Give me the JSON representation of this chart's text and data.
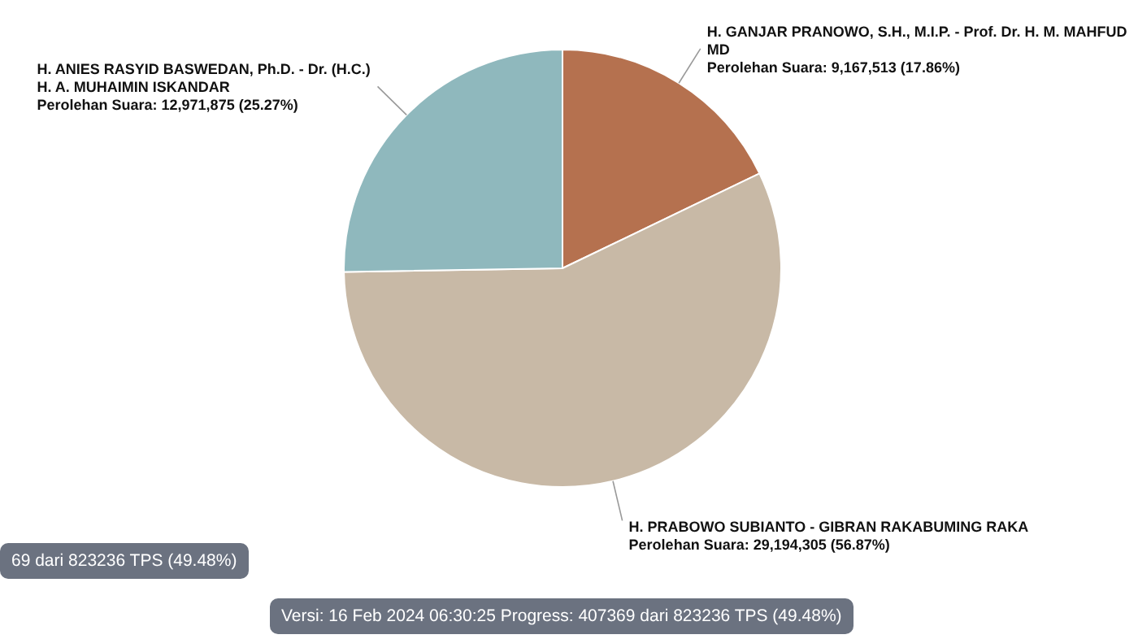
{
  "chart_data": {
    "type": "pie",
    "categories": [
      "H. GANJAR PRANOWO, S.H., M.I.P. - Prof. Dr. H. M. MAHFUD MD",
      "H. PRABOWO SUBIANTO - GIBRAN RAKABUMING RAKA",
      "H. ANIES RASYID BASWEDAN, Ph.D. - Dr. (H.C.) H. A. MUHAIMIN ISKANDAR"
    ],
    "values": [
      9167513,
      29194305,
      12971875
    ],
    "colors": [
      "#b5714f",
      "#c8b9a6",
      "#8fb8bd"
    ],
    "value_labels": [
      "Perolehan Suara: 9,167,513 (17.86%)",
      "Perolehan Suara: 29,194,305 (56.87%)",
      "Perolehan Suara: 12,971,875 (25.27%)"
    ],
    "annotations": [
      "69 dari 823236 TPS (49.48%)",
      "Versi: 16 Feb 2024 06:30:25 Progress: 407369 dari 823236 TPS (49.48%)"
    ]
  }
}
